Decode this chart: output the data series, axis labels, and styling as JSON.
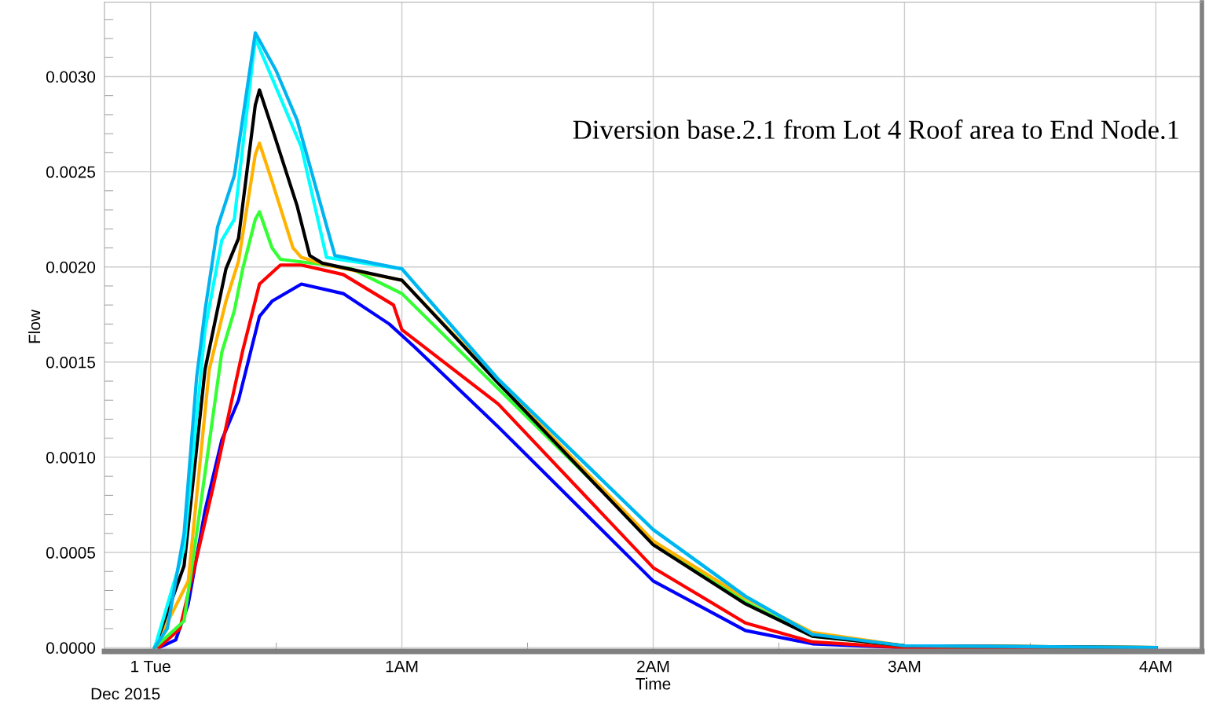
{
  "chart_data": {
    "type": "line",
    "xlabel": "Time",
    "ylabel": "Flow",
    "annotations": [
      "Diversion base.2.1 from Lot 4 Roof area to End Node.1",
      "Dec 2015"
    ],
    "xlim": [
      "2015-11-30T23:49",
      "2015-12-01T04:11"
    ],
    "ylim": [
      -2e-05,
      0.00339
    ],
    "xticks": [
      {
        "value": "2015-12-01T00:00",
        "label": "1 Tue"
      },
      {
        "value": "2015-12-01T01:00",
        "label": "1AM"
      },
      {
        "value": "2015-12-01T02:00",
        "label": "2AM"
      },
      {
        "value": "2015-12-01T03:00",
        "label": "3AM"
      },
      {
        "value": "2015-12-01T04:00",
        "label": "4AM"
      }
    ],
    "yticks": [
      {
        "value": 0,
        "label": "0.0000"
      },
      {
        "value": 0.0005,
        "label": "0.0005"
      },
      {
        "value": 0.001,
        "label": "0.0010"
      },
      {
        "value": 0.0015,
        "label": "0.0015"
      },
      {
        "value": 0.002,
        "label": "0.0020"
      },
      {
        "value": 0.0025,
        "label": "0.0025"
      },
      {
        "value": 0.003,
        "label": "0.0030"
      }
    ],
    "grid": true,
    "legend": false,
    "marker": "none",
    "line_style": "solid",
    "series": [
      {
        "color": "#0000ff",
        "x": [
          "2015-12-01T00:02",
          "2015-12-01T00:06",
          "2015-12-01T00:09",
          "2015-12-01T00:13",
          "2015-12-01T00:17",
          "2015-12-01T00:21",
          "2015-12-01T00:26",
          "2015-12-01T00:29",
          "2015-12-01T00:36",
          "2015-12-01T00:46",
          "2015-12-01T00:57",
          "2015-12-01T01:03",
          "2015-12-01T01:23",
          "2015-12-01T02:00",
          "2015-12-01T02:22",
          "2015-12-01T02:38",
          "2015-12-01T03:00",
          "2015-12-01T04:00"
        ],
        "values": [
          0,
          4e-05,
          0.00023,
          0.00072,
          0.00109,
          0.0013,
          0.00174,
          0.00182,
          0.00191,
          0.00186,
          0.0017,
          0.00158,
          0.00116,
          0.00035,
          9e-05,
          2e-05,
          0,
          0
        ]
      },
      {
        "color": "#ff0000",
        "x": [
          "2015-12-01T00:02",
          "2015-12-01T00:07",
          "2015-12-01T00:11",
          "2015-12-01T00:15",
          "2015-12-01T00:19",
          "2015-12-01T00:22",
          "2015-12-01T00:26",
          "2015-12-01T00:31",
          "2015-12-01T00:36",
          "2015-12-01T00:46",
          "2015-12-01T00:58",
          "2015-12-01T01:00",
          "2015-12-01T01:23",
          "2015-12-01T02:00",
          "2015-12-01T02:22",
          "2015-12-01T02:38",
          "2015-12-01T03:00",
          "2015-12-01T04:00"
        ],
        "values": [
          0,
          0.0001,
          0.00047,
          0.00085,
          0.00126,
          0.00156,
          0.00191,
          0.00201,
          0.00201,
          0.00196,
          0.0018,
          0.00167,
          0.00128,
          0.00042,
          0.00013,
          3e-05,
          0,
          0
        ]
      },
      {
        "color": "#33ff33",
        "x": [
          "2015-12-01T00:01",
          "2015-12-01T00:08",
          "2015-12-01T00:11",
          "2015-12-01T00:17",
          "2015-12-01T00:20",
          "2015-12-01T00:22",
          "2015-12-01T00:25",
          "2015-12-01T00:26",
          "2015-12-01T00:29",
          "2015-12-01T00:31",
          "2015-12-01T00:42",
          "2015-12-01T00:48",
          "2015-12-01T01:00",
          "2015-12-01T01:23",
          "2015-12-01T02:00",
          "2015-12-01T02:22",
          "2015-12-01T02:38",
          "2015-12-01T03:00",
          "2015-12-01T04:00"
        ],
        "values": [
          0,
          0.00014,
          0.0006,
          0.00155,
          0.00177,
          0.00199,
          0.00225,
          0.00229,
          0.0021,
          0.00204,
          0.00201,
          0.00199,
          0.00186,
          0.00136,
          0.00056,
          0.00024,
          6e-05,
          1e-05,
          0
        ]
      },
      {
        "color": "#ffb300",
        "x": [
          "2015-12-01T00:01",
          "2015-12-01T00:09",
          "2015-12-01T00:14",
          "2015-12-01T00:18",
          "2015-12-01T00:21",
          "2015-12-01T00:25",
          "2015-12-01T00:26",
          "2015-12-01T00:29",
          "2015-12-01T00:34",
          "2015-12-01T00:36",
          "2015-12-01T00:42",
          "2015-12-01T01:00",
          "2015-12-01T01:23",
          "2015-12-01T02:00",
          "2015-12-01T02:22",
          "2015-12-01T02:38",
          "2015-12-01T03:00",
          "2015-12-01T04:00"
        ],
        "values": [
          0,
          0.00035,
          0.00146,
          0.00182,
          0.00203,
          0.00259,
          0.00265,
          0.00245,
          0.0021,
          0.00205,
          0.00201,
          0.00193,
          0.0014,
          0.00056,
          0.00026,
          8e-05,
          1e-05,
          0
        ]
      },
      {
        "color": "#000000",
        "x": [
          "2015-12-01T00:01",
          "2015-12-01T00:08",
          "2015-12-01T00:13",
          "2015-12-01T00:18",
          "2015-12-01T00:21",
          "2015-12-01T00:25",
          "2015-12-01T00:26",
          "2015-12-01T00:29",
          "2015-12-01T00:35",
          "2015-12-01T00:38",
          "2015-12-01T00:41",
          "2015-12-01T01:00",
          "2015-12-01T01:23",
          "2015-12-01T02:00",
          "2015-12-01T02:22",
          "2015-12-01T02:38",
          "2015-12-01T03:00",
          "2015-12-01T04:00"
        ],
        "values": [
          0,
          0.00043,
          0.00146,
          0.00199,
          0.00215,
          0.00285,
          0.00293,
          0.00273,
          0.00232,
          0.00206,
          0.00202,
          0.00193,
          0.00139,
          0.00054,
          0.00023,
          6e-05,
          1e-05,
          0
        ]
      },
      {
        "color": "#00ffff",
        "x": [
          "2015-12-01T00:01",
          "2015-12-01T00:08",
          "2015-12-01T00:13",
          "2015-12-01T00:17",
          "2015-12-01T00:20",
          "2015-12-01T00:25",
          "2015-12-01T00:36",
          "2015-12-01T00:42",
          "2015-12-01T01:00",
          "2015-12-01T01:23",
          "2015-12-01T02:00",
          "2015-12-01T02:22",
          "2015-12-01T02:38"
        ],
        "values": [
          0,
          0.00052,
          0.00167,
          0.00214,
          0.00225,
          0.0032,
          0.00263,
          0.00205,
          0.00199,
          0.00141,
          0.00062,
          0.00027,
          7e-05
        ]
      },
      {
        "color": "#00b4f0",
        "x": [
          "2015-12-01T00:01",
          "2015-12-01T00:04",
          "2015-12-01T00:08",
          "2015-12-01T00:11",
          "2015-12-01T00:13",
          "2015-12-01T00:16",
          "2015-12-01T00:20",
          "2015-12-01T00:25",
          "2015-12-01T00:30",
          "2015-12-01T00:35",
          "2015-12-01T00:44",
          "2015-12-01T01:00",
          "2015-12-01T01:23",
          "2015-12-01T02:00",
          "2015-12-01T02:22",
          "2015-12-01T02:38",
          "2015-12-01T03:00",
          "2015-12-01T04:00"
        ],
        "values": [
          0,
          0.0001,
          0.0006,
          0.00142,
          0.00177,
          0.00221,
          0.00248,
          0.00323,
          0.00303,
          0.00277,
          0.00206,
          0.00199,
          0.00141,
          0.00062,
          0.00027,
          7e-05,
          1e-05,
          0
        ]
      }
    ]
  }
}
